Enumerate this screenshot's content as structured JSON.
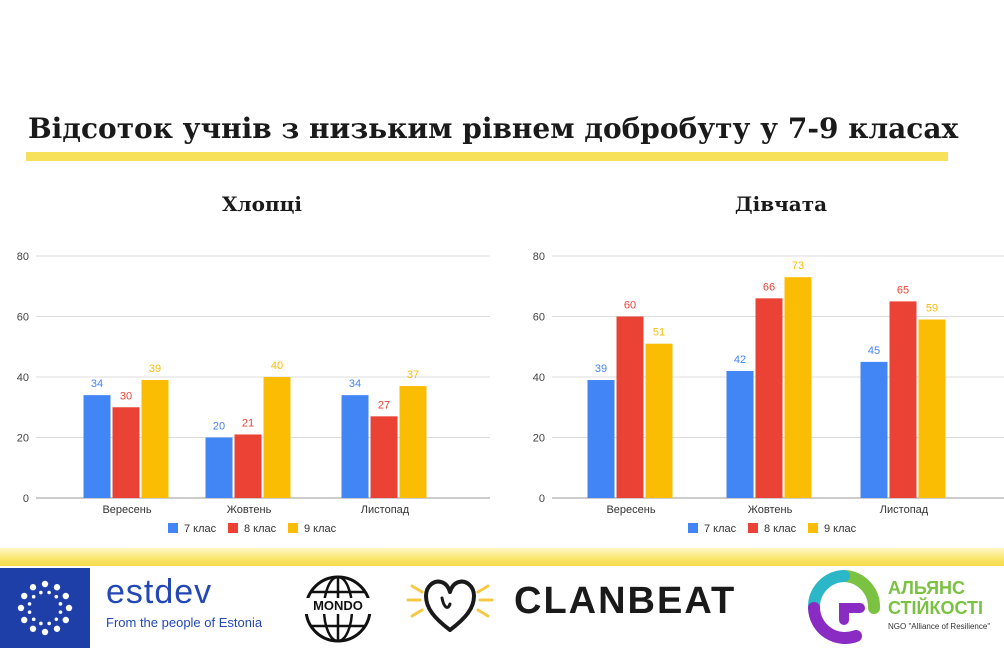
{
  "slide": {
    "title": "Відсоток учнів з низьким рівнем добробуту у 7-9 класах"
  },
  "colors": {
    "accent_yellow": "#f7e15a",
    "series_7": "#4285f4",
    "series_8": "#ea4335",
    "series_9": "#fbbc04"
  },
  "chart_data": [
    {
      "type": "bar",
      "title": "Хлопці",
      "categories": [
        "Вересень",
        "Жовтень",
        "Листопад"
      ],
      "series": [
        {
          "name": "7 клас",
          "values": [
            34,
            20,
            34
          ]
        },
        {
          "name": "8 клас",
          "values": [
            30,
            21,
            27
          ]
        },
        {
          "name": "9 клас",
          "values": [
            39,
            40,
            37
          ]
        }
      ],
      "ylim": [
        0,
        80
      ],
      "yticks": [
        0,
        20,
        40,
        60,
        80
      ],
      "grid": true,
      "legend": "bottom"
    },
    {
      "type": "bar",
      "title": "Дівчата",
      "categories": [
        "Вересень",
        "Жовтень",
        "Листопад"
      ],
      "series": [
        {
          "name": "7 клас",
          "values": [
            39,
            42,
            45
          ]
        },
        {
          "name": "8 клас",
          "values": [
            60,
            66,
            65
          ]
        },
        {
          "name": "9 клас",
          "values": [
            51,
            73,
            59
          ]
        }
      ],
      "ylim": [
        0,
        80
      ],
      "yticks": [
        0,
        20,
        40,
        60,
        80
      ],
      "grid": true,
      "legend": "bottom"
    }
  ],
  "footer": {
    "estdev_name": "estdev",
    "estdev_tagline": "From the people of Estonia",
    "mondo_name": "MONDO",
    "clanbeat_name": "CLANBEAT",
    "alliance_line1": "АЛЬЯНС",
    "alliance_line2": "СТІЙКОСТІ",
    "alliance_tagline": "NGO \"Alliance of Resilience\""
  }
}
